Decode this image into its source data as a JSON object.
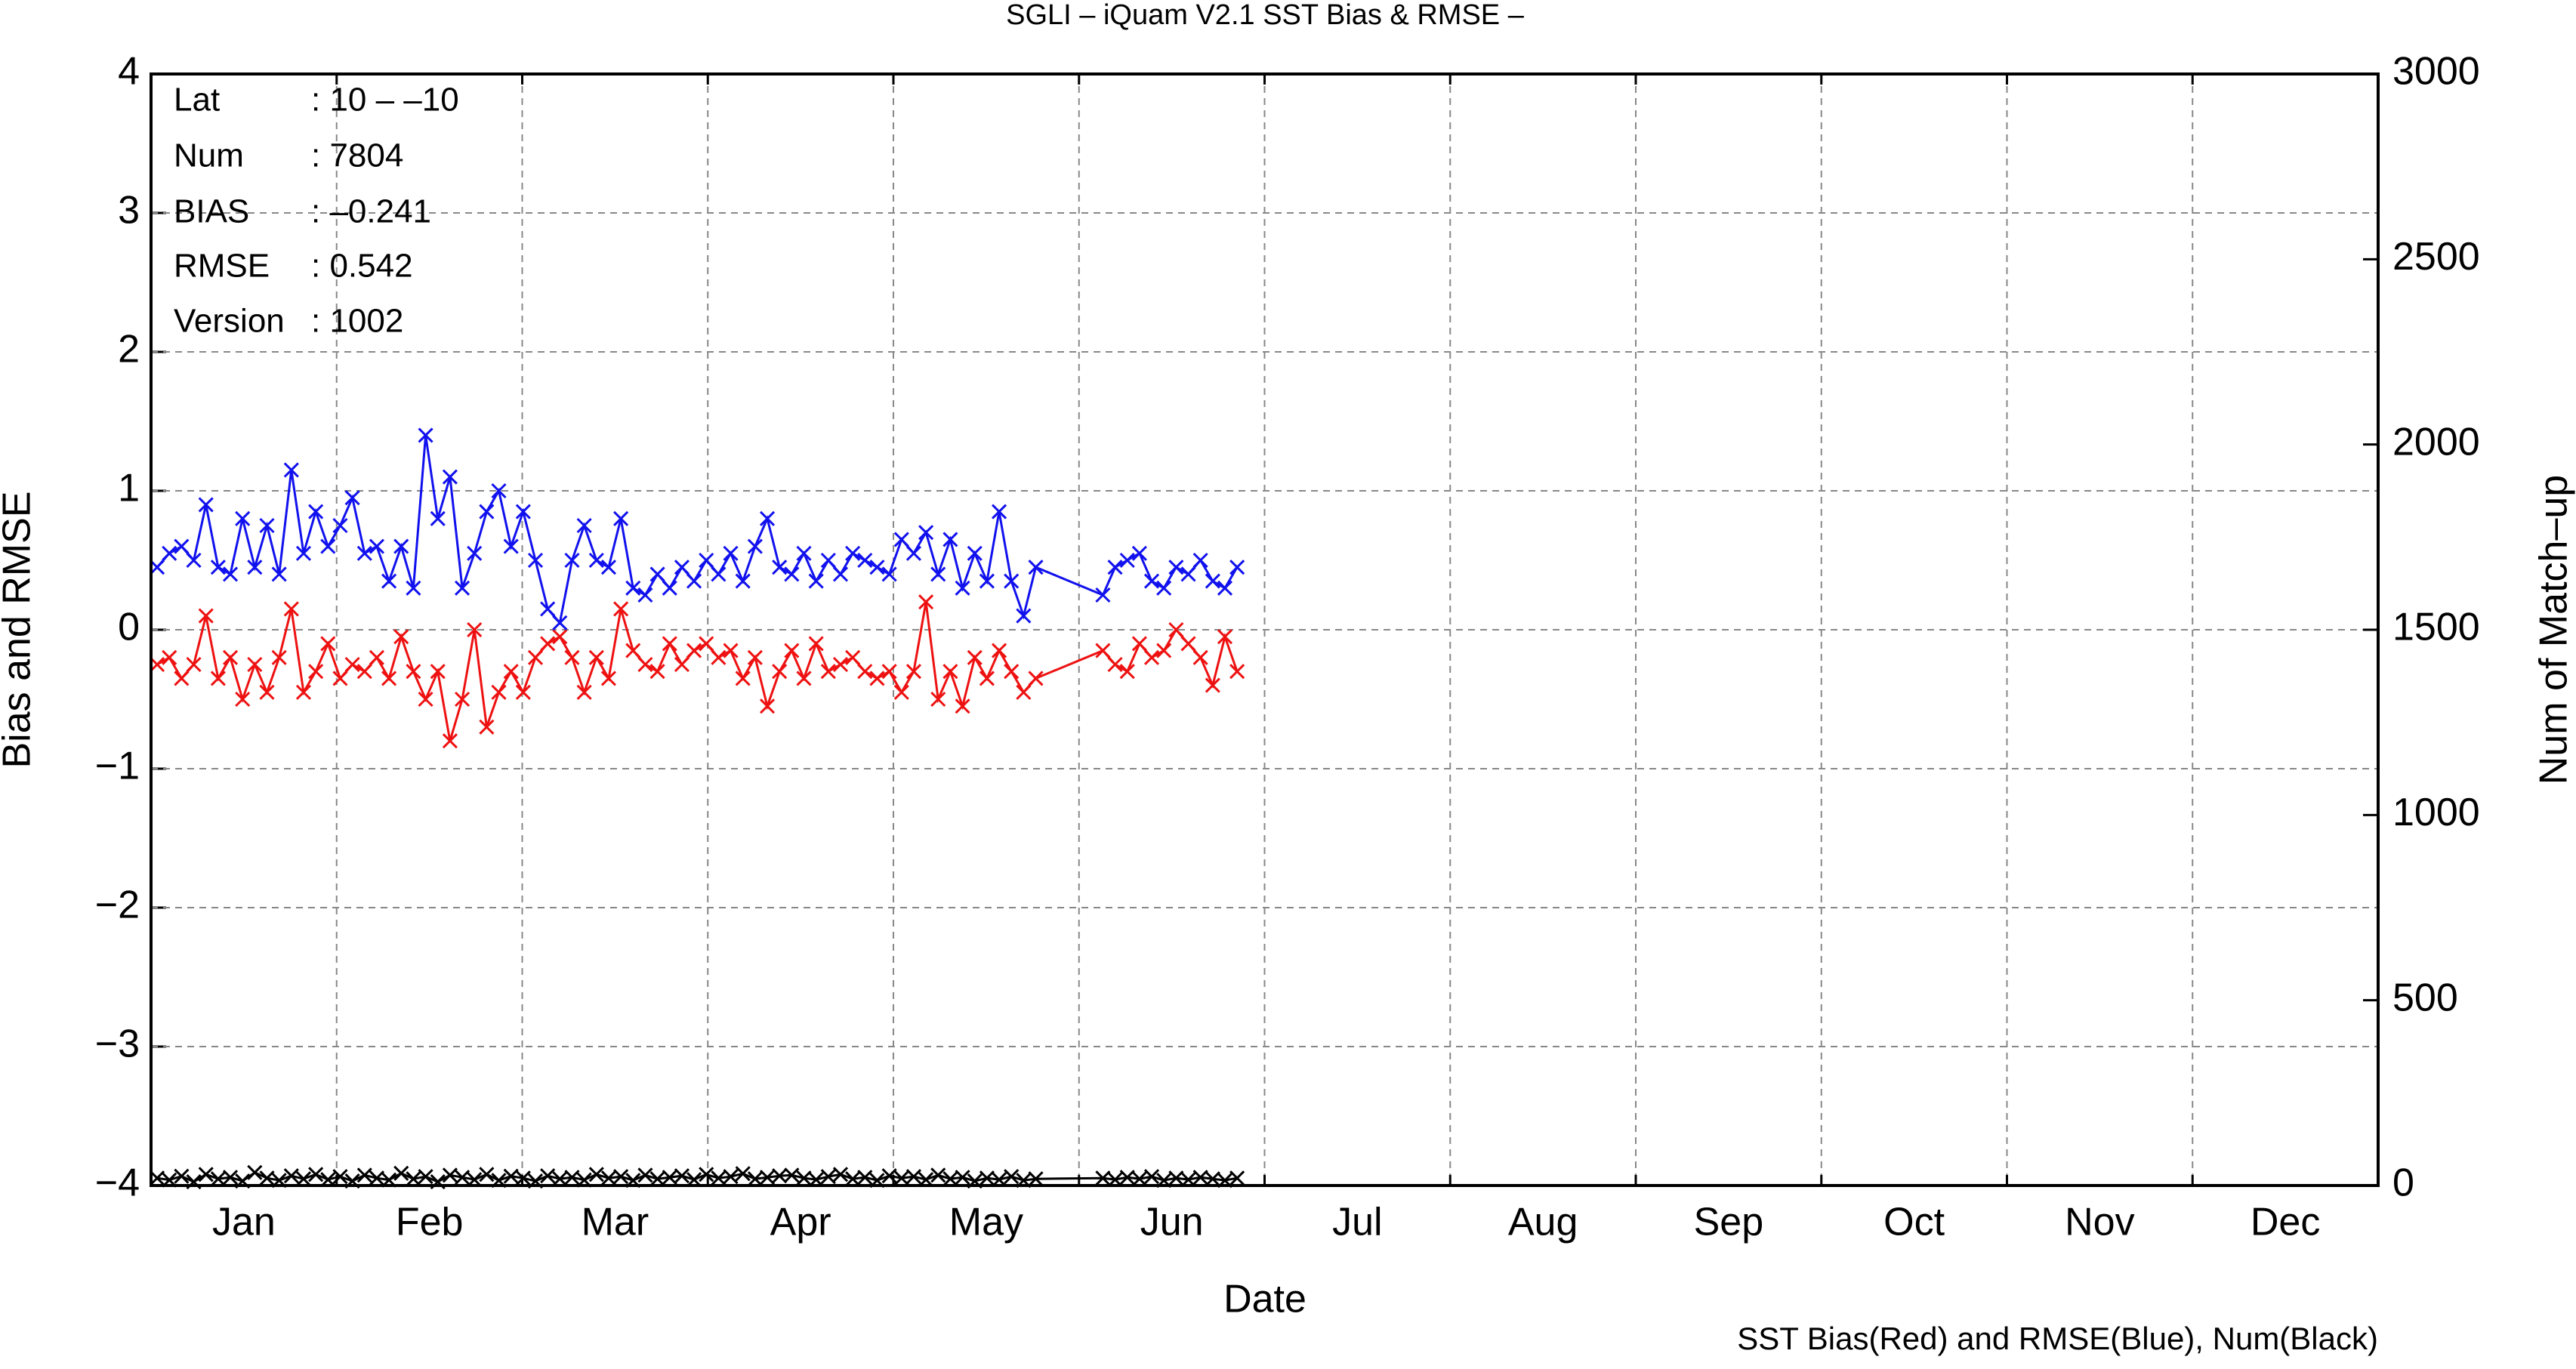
{
  "chart_data": {
    "type": "line",
    "title": "SGLI – iQuam V2.1 SST Bias & RMSE  –",
    "x_label": "Date",
    "y_label": "Bias and RMSE",
    "y2_label": "Num of Match–up",
    "footnote": "SST Bias(Red) and RMSE(Blue), Num(Black)",
    "info": [
      {
        "label": "Lat",
        "value": ": 10 – –10"
      },
      {
        "label": "Num",
        "value": ": 7804"
      },
      {
        "label": "BIAS",
        "value": ": –0.241"
      },
      {
        "label": "RMSE",
        "value": ": 0.542"
      },
      {
        "label": "Version",
        "value": ": 1002"
      }
    ],
    "categories": [
      "Jan",
      "Feb",
      "Mar",
      "Apr",
      "May",
      "Jun",
      "Jul",
      "Aug",
      "Sep",
      "Oct",
      "Nov",
      "Dec"
    ],
    "xlim": [
      0,
      365
    ],
    "ylim": [
      -4,
      4
    ],
    "yticks": [
      {
        "value": -4,
        "label": "−4"
      },
      {
        "value": -3,
        "label": "−3"
      },
      {
        "value": -2,
        "label": "−2"
      },
      {
        "value": -1,
        "label": "−1"
      },
      0,
      1,
      2,
      3,
      4
    ],
    "y2lim": [
      0,
      3000
    ],
    "y2ticks": [
      0,
      500,
      1000,
      1500,
      2000,
      2500,
      3000
    ],
    "grid": true,
    "x": [
      1,
      3,
      5,
      7,
      9,
      11,
      13,
      15,
      17,
      19,
      21,
      23,
      25,
      27,
      29,
      31,
      33,
      35,
      37,
      39,
      41,
      43,
      45,
      47,
      49,
      51,
      53,
      55,
      57,
      59,
      61,
      63,
      65,
      67,
      69,
      71,
      73,
      75,
      77,
      79,
      81,
      83,
      85,
      87,
      89,
      91,
      93,
      95,
      97,
      99,
      101,
      103,
      105,
      107,
      109,
      111,
      113,
      115,
      117,
      119,
      121,
      123,
      125,
      127,
      129,
      131,
      133,
      135,
      137,
      139,
      141,
      143,
      145,
      156,
      158,
      160,
      162,
      164,
      166,
      168,
      170,
      172,
      174,
      176,
      178
    ],
    "series": [
      {
        "name": "SST Bias",
        "color": "#ee1111",
        "values": [
          -0.25,
          -0.2,
          -0.35,
          -0.25,
          0.1,
          -0.35,
          -0.2,
          -0.5,
          -0.25,
          -0.45,
          -0.2,
          0.15,
          -0.45,
          -0.3,
          -0.1,
          -0.35,
          -0.25,
          -0.3,
          -0.2,
          -0.35,
          -0.05,
          -0.3,
          -0.5,
          -0.3,
          -0.8,
          -0.5,
          0.0,
          -0.7,
          -0.45,
          -0.3,
          -0.45,
          -0.2,
          -0.1,
          -0.05,
          -0.2,
          -0.45,
          -0.2,
          -0.35,
          0.15,
          -0.15,
          -0.25,
          -0.3,
          -0.1,
          -0.25,
          -0.15,
          -0.1,
          -0.2,
          -0.15,
          -0.35,
          -0.2,
          -0.55,
          -0.3,
          -0.15,
          -0.35,
          -0.1,
          -0.3,
          -0.25,
          -0.2,
          -0.3,
          -0.35,
          -0.3,
          -0.45,
          -0.3,
          0.2,
          -0.5,
          -0.3,
          -0.55,
          -0.2,
          -0.35,
          -0.15,
          -0.3,
          -0.45,
          -0.35,
          -0.15,
          -0.25,
          -0.3,
          -0.1,
          -0.2,
          -0.15,
          0.0,
          -0.1,
          -0.2,
          -0.4,
          -0.05,
          -0.3
        ]
      },
      {
        "name": "RMSE",
        "color": "#1111ee",
        "values": [
          0.45,
          0.55,
          0.6,
          0.5,
          0.9,
          0.45,
          0.4,
          0.8,
          0.45,
          0.75,
          0.4,
          1.15,
          0.55,
          0.85,
          0.6,
          0.75,
          0.95,
          0.55,
          0.6,
          0.35,
          0.6,
          0.3,
          1.4,
          0.8,
          1.1,
          0.3,
          0.55,
          0.85,
          1.0,
          0.6,
          0.85,
          0.5,
          0.15,
          0.05,
          0.5,
          0.75,
          0.5,
          0.45,
          0.8,
          0.3,
          0.25,
          0.4,
          0.3,
          0.45,
          0.35,
          0.5,
          0.4,
          0.55,
          0.35,
          0.6,
          0.8,
          0.45,
          0.4,
          0.55,
          0.35,
          0.5,
          0.4,
          0.55,
          0.5,
          0.45,
          0.4,
          0.65,
          0.55,
          0.7,
          0.4,
          0.65,
          0.3,
          0.55,
          0.35,
          0.85,
          0.35,
          0.1,
          0.45,
          0.25,
          0.45,
          0.5,
          0.55,
          0.35,
          0.3,
          0.45,
          0.4,
          0.5,
          0.35,
          0.3,
          0.45
        ]
      },
      {
        "name": "Num",
        "color": "#000000",
        "axis": "y2",
        "values": [
          20,
          15,
          25,
          10,
          30,
          18,
          22,
          12,
          35,
          20,
          14,
          26,
          18,
          30,
          16,
          24,
          12,
          28,
          20,
          15,
          33,
          18,
          24,
          10,
          28,
          22,
          16,
          30,
          14,
          25,
          20,
          12,
          26,
          18,
          22,
          15,
          30,
          20,
          24,
          14,
          28,
          18,
          22,
          26,
          16,
          30,
          20,
          24,
          32,
          18,
          22,
          26,
          28,
          20,
          16,
          24,
          30,
          18,
          22,
          14,
          26,
          20,
          24,
          16,
          28,
          18,
          22,
          12,
          20,
          16,
          24,
          14,
          18,
          20,
          16,
          22,
          18,
          24,
          14,
          20,
          16,
          22,
          18,
          14,
          20
        ]
      }
    ]
  }
}
